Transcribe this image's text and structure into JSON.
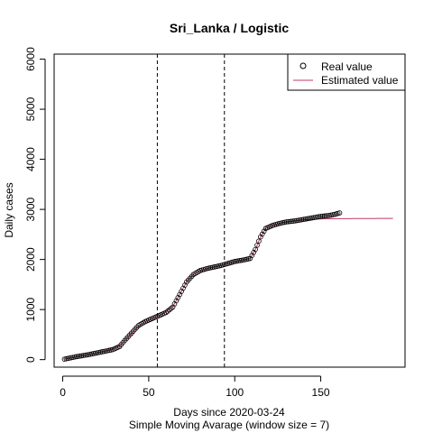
{
  "chart_data": {
    "type": "scatter",
    "title": "Sri_Lanka / Logistic",
    "xlabel": "Days since 2020-03-24",
    "xsublabel": "Simple Moving Avarage (window size = 7)",
    "ylabel": "Daily cases",
    "xlim": [
      -5,
      199
    ],
    "ylim": [
      -150,
      6100
    ],
    "x_ticks": [
      0,
      50,
      100,
      150
    ],
    "y_ticks": [
      0,
      1000,
      2000,
      3000,
      4000,
      5000,
      6000
    ],
    "vlines": [
      55,
      94
    ],
    "legend": {
      "position": "top-right",
      "entries": [
        "Real value",
        "Estimated value"
      ]
    },
    "colors": {
      "points": "#000000",
      "estimated": "#c0396b",
      "axes": "#000000"
    },
    "series": [
      {
        "name": "Real value",
        "style": "points",
        "x_start": 1,
        "x_end": 161,
        "anchors": [
          [
            1,
            10
          ],
          [
            8,
            60
          ],
          [
            15,
            100
          ],
          [
            22,
            150
          ],
          [
            29,
            200
          ],
          [
            33,
            260
          ],
          [
            36,
            380
          ],
          [
            40,
            530
          ],
          [
            44,
            680
          ],
          [
            48,
            760
          ],
          [
            52,
            820
          ],
          [
            56,
            880
          ],
          [
            60,
            940
          ],
          [
            64,
            1050
          ],
          [
            68,
            1300
          ],
          [
            72,
            1550
          ],
          [
            76,
            1700
          ],
          [
            80,
            1780
          ],
          [
            84,
            1820
          ],
          [
            88,
            1850
          ],
          [
            92,
            1880
          ],
          [
            96,
            1920
          ],
          [
            100,
            1960
          ],
          [
            105,
            1990
          ],
          [
            109,
            2020
          ],
          [
            112,
            2200
          ],
          [
            115,
            2450
          ],
          [
            118,
            2620
          ],
          [
            122,
            2680
          ],
          [
            126,
            2720
          ],
          [
            130,
            2750
          ],
          [
            135,
            2770
          ],
          [
            140,
            2800
          ],
          [
            145,
            2830
          ],
          [
            150,
            2860
          ],
          [
            155,
            2880
          ],
          [
            158,
            2900
          ],
          [
            161,
            2930
          ]
        ]
      },
      {
        "name": "Estimated value",
        "style": "line",
        "x_start": 1,
        "x_end": 192,
        "anchors": [
          [
            1,
            10
          ],
          [
            8,
            55
          ],
          [
            15,
            100
          ],
          [
            22,
            150
          ],
          [
            29,
            210
          ],
          [
            33,
            270
          ],
          [
            36,
            380
          ],
          [
            40,
            530
          ],
          [
            44,
            670
          ],
          [
            48,
            760
          ],
          [
            52,
            820
          ],
          [
            56,
            880
          ],
          [
            60,
            950
          ],
          [
            64,
            1060
          ],
          [
            68,
            1300
          ],
          [
            72,
            1550
          ],
          [
            76,
            1700
          ],
          [
            80,
            1780
          ],
          [
            84,
            1820
          ],
          [
            88,
            1850
          ],
          [
            92,
            1880
          ],
          [
            96,
            1920
          ],
          [
            100,
            1960
          ],
          [
            105,
            1990
          ],
          [
            109,
            2020
          ],
          [
            112,
            2200
          ],
          [
            115,
            2450
          ],
          [
            118,
            2620
          ],
          [
            122,
            2680
          ],
          [
            126,
            2720
          ],
          [
            130,
            2750
          ],
          [
            135,
            2770
          ],
          [
            140,
            2790
          ],
          [
            145,
            2800
          ],
          [
            150,
            2810
          ],
          [
            160,
            2815
          ],
          [
            192,
            2820
          ]
        ]
      }
    ]
  }
}
